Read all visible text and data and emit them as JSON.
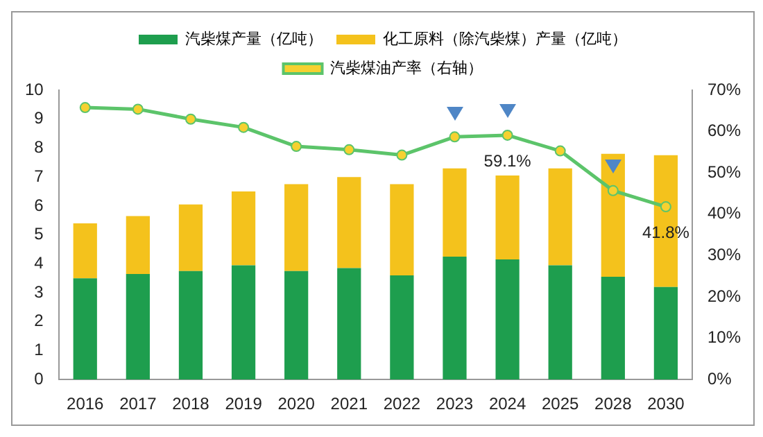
{
  "chart_data": {
    "type": "bar",
    "stacked": true,
    "categories": [
      "2016",
      "2017",
      "2018",
      "2019",
      "2020",
      "2021",
      "2022",
      "2023",
      "2024",
      "2025",
      "2028",
      "2030"
    ],
    "series": [
      {
        "name": "汽柴煤产量（亿吨）",
        "color": "#1e9e4e",
        "values": [
          3.5,
          3.65,
          3.75,
          3.95,
          3.75,
          3.85,
          3.6,
          4.25,
          4.15,
          3.95,
          3.55,
          3.2
        ]
      },
      {
        "name": "化工原料（除汽柴煤）产量（亿吨）",
        "color": "#f4c21c",
        "values": [
          1.9,
          2.0,
          2.3,
          2.55,
          3.0,
          3.15,
          3.15,
          3.05,
          2.9,
          3.35,
          4.25,
          4.55
        ]
      },
      {
        "name": "汽柴煤油产率（右轴）",
        "type": "line",
        "axis": "y2",
        "color": "#5cc46a",
        "marker": "circle",
        "values": [
          65.8,
          65.4,
          63,
          61,
          56.4,
          55.6,
          54.3,
          58.7,
          59.1,
          55.3,
          45.7,
          41.8
        ],
        "value_labels": [
          null,
          null,
          null,
          null,
          null,
          null,
          null,
          null,
          "59.1%",
          null,
          null,
          "41.8%"
        ]
      }
    ],
    "ylim": [
      0,
      10
    ],
    "yticks": [
      0,
      1,
      2,
      3,
      4,
      5,
      6,
      7,
      8,
      9,
      10
    ],
    "y2lim": [
      0,
      70
    ],
    "y2ticks": [
      {
        "value": 0,
        "label": "0%"
      },
      {
        "value": 10,
        "label": "10%"
      },
      {
        "value": 20,
        "label": "20%"
      },
      {
        "value": 30,
        "label": "30%"
      },
      {
        "value": 40,
        "label": "40%"
      },
      {
        "value": 50,
        "label": "50%"
      },
      {
        "value": 60,
        "label": "60%"
      },
      {
        "value": 70,
        "label": "70%"
      }
    ],
    "grid": false,
    "legend": "top"
  }
}
